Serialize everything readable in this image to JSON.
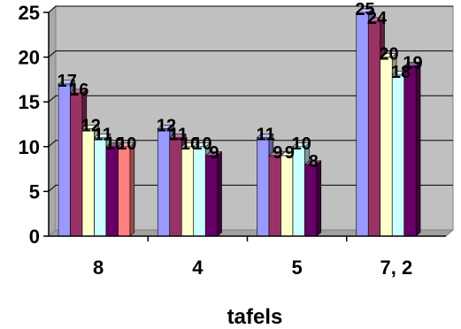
{
  "chart_data": {
    "type": "bar",
    "categories": [
      "8",
      "4",
      "5",
      "7, 2"
    ],
    "series": [
      {
        "color": "#9999ff",
        "values": [
          17,
          12,
          11,
          25
        ]
      },
      {
        "color": "#993366",
        "values": [
          16,
          11,
          9,
          24
        ]
      },
      {
        "color": "#ffffcc",
        "values": [
          12,
          10,
          9,
          20
        ]
      },
      {
        "color": "#ccffff",
        "values": [
          11,
          10,
          10,
          18
        ]
      },
      {
        "color": "#660066",
        "values": [
          10,
          9,
          8,
          19
        ]
      },
      {
        "color": "#ff8080",
        "values": [
          10,
          null,
          null,
          null
        ]
      }
    ],
    "data_labels": [
      [
        "17",
        "16",
        "12",
        "11",
        "10",
        "10"
      ],
      [
        "12",
        "11",
        "10",
        "10",
        "9",
        ""
      ],
      [
        "11",
        "9",
        "9",
        "10",
        "8",
        ""
      ],
      [
        "25",
        "24",
        "20",
        "18",
        "19",
        ""
      ]
    ],
    "xlabel": "tafels",
    "ylabel": "",
    "ylim": [
      0,
      25
    ],
    "yticks": [
      "0",
      "5",
      "10",
      "15",
      "20",
      "25"
    ],
    "grid": true,
    "three_d": true,
    "legend": "none",
    "plot_background": "#c0c0c0"
  }
}
